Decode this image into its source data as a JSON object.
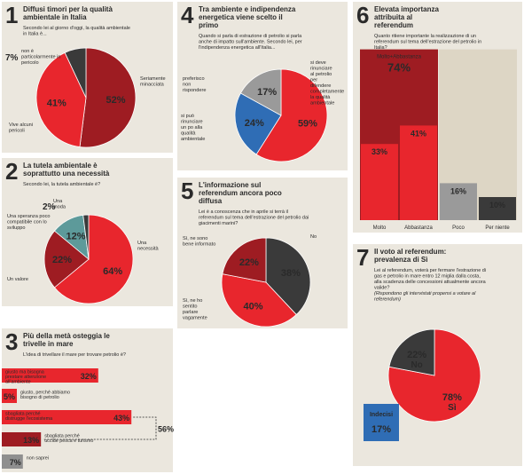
{
  "chart_data": [
    {
      "type": "pie",
      "number": 1,
      "title": "Diffusi timori per la qualità ambientale in Italia",
      "subtitle": "Secondo lei al giorno d'oggi, la qualità ambientale in Italia è...",
      "categories": [
        "Seriamente minacciata",
        "Vive alcuni pericoli",
        "non è particolarmente in pericolo"
      ],
      "values": [
        52,
        41,
        7
      ],
      "value_labels": [
        "52%",
        "41%",
        "7%"
      ],
      "colors": [
        "#9e1c22",
        "#e8262d",
        "#3a3a3a"
      ]
    },
    {
      "type": "pie",
      "number": 2,
      "title": "La tutela ambientale è soprattutto una necessità",
      "subtitle": "Secondo lei, la tutela ambientale è?",
      "categories": [
        "Una necessità",
        "Un valore",
        "Una speranza poco compatibile con lo sviluppo",
        "Una moda"
      ],
      "values": [
        64,
        22,
        12,
        2
      ],
      "value_labels": [
        "64%",
        "22%",
        "12%",
        "2%"
      ],
      "colors": [
        "#e8262d",
        "#9e1c22",
        "#5d9a9a",
        "#3a3a3a"
      ]
    },
    {
      "type": "hbar",
      "number": 3,
      "title": "Più della metà osteggia le trivelle in mare",
      "subtitle": "L'idea di trivellare il mare per trovare petrolio è?",
      "categories": [
        "giusto ma bisogna prestare attenzione all'ambiente",
        "giusto, perché abbiamo bisogno di petrolio",
        "sbagliata perché distrugge l'ecosistema",
        "sbagliata perché uccide pesca e turismo",
        "non saprei"
      ],
      "values": [
        32,
        5,
        43,
        13,
        7
      ],
      "value_labels": [
        "32%",
        "5%",
        "43%",
        "13%",
        "7%"
      ],
      "colors": [
        "#e8262d",
        "#e8262d",
        "#e8262d",
        "#9e1c22",
        "#8f8f8f"
      ],
      "bracket": {
        "value": 56,
        "value_label": "56%"
      }
    },
    {
      "type": "pie",
      "number": 4,
      "title": "Tra ambiente e indipendenza energetica viene scelto il primo",
      "subtitle": "Quando si parla di estrazione di petrolio si parla anche di impatto sull'ambiente. Secondo lei, per l'indipendenza energetica all'Italia...",
      "categories": [
        "si deve rinunciare al petrolio per difendere completamente la qualità ambientale",
        "si può rinunciare un po alla qualità ambientale",
        "preferisco non rispondere"
      ],
      "values": [
        59,
        24,
        17
      ],
      "value_labels": [
        "59%",
        "24%",
        "17%"
      ],
      "colors": [
        "#e8262d",
        "#2f6db5",
        "#9a9a9a"
      ]
    },
    {
      "type": "pie",
      "number": 5,
      "title": "L'informazione sul referendum ancora poco diffusa",
      "subtitle": "Lei è a conoscenza che in aprile si terrà il referendum sul tema dell'estrazione del petrolio dai giacimenti marini?",
      "categories": [
        "No",
        "Sì, ne ho sentito parlare vagamente",
        "Sì, ne sono bene informato"
      ],
      "values": [
        38,
        40,
        22
      ],
      "value_labels": [
        "38%",
        "40%",
        "22%"
      ],
      "colors": [
        "#3a3a3a",
        "#e8262d",
        "#9e1c22"
      ]
    },
    {
      "type": "column",
      "number": 6,
      "title": "Elevata importanza attribuita al referendum",
      "subtitle": "Quanto ritiene importante la realizzazione di un referendum sul tema dell'estrazione del petrolio in Italia?",
      "categories": [
        "Molto",
        "Abbastanza",
        "Poco",
        "Per niente"
      ],
      "values": [
        33,
        41,
        16,
        10
      ],
      "value_labels": [
        "33%",
        "41%",
        "16%",
        "10%"
      ],
      "colors": [
        "#e8262d",
        "#e8262d",
        "#9a9a9a",
        "#3a3a3a"
      ],
      "combined": {
        "label": "Molto+Abbastanza",
        "value": 74,
        "value_label": "74%"
      }
    },
    {
      "type": "pie",
      "number": 7,
      "title": "Il voto al referendum: prevalenza di Sì",
      "subtitle": "Lei al referendum, voterà per fermare l'estrazione di gas e petrolio in mare entro 12 miglia dalla costa, alla scadenza delle concessioni attualmente ancora valide?",
      "note": "(Rispondono gli intervistati propensi a votare al referendum)",
      "categories": [
        "Sì",
        "No"
      ],
      "values": [
        78,
        22
      ],
      "value_labels": [
        "78%",
        "22%"
      ],
      "colors": [
        "#e8262d",
        "#3a3a3a"
      ],
      "undecided": {
        "label": "Indecisi",
        "value": 17,
        "value_label": "17%"
      }
    }
  ]
}
